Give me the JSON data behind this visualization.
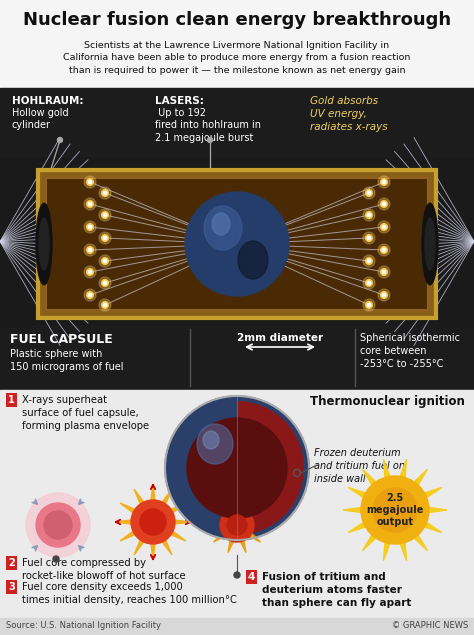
{
  "title": "Nuclear fusion clean energy breakthrough",
  "subtitle": "Scientists at the Lawrence Livermore National Ignition Facility in\nCalifornia have been able to produce more energy from a fusion reaction\nthan is required to power it — the milestone known as net energy gain",
  "bg_color": "#f0f0f0",
  "label_hohlraum_bold": "HOHLRAUM:",
  "label_hohlraum_rest": "\nHollow gold\ncylinder",
  "label_lasers_bold": "LASERS:",
  "label_lasers_rest": " Up to 192\nfired into hohlraum in\n2.1 megajoule burst",
  "label_gold": "Gold absorbs\nUV energy,\nradiates x-rays",
  "label_fuel_capsule_title": "FUEL CAPSULE",
  "label_fuel_capsule_desc": "Plastic sphere with\n150 micrograms of fuel",
  "label_2mm": "2mm diameter",
  "label_spherical": "Spherical isothermic\ncore between\n-253°C to -255°C",
  "label_frozen": "Frozen deuterium\nand tritium fuel on\ninside wall",
  "label_thermonuclear": "Thermonuclear ignition",
  "label_2_5": "2.5\nmegajoule\noutput",
  "step1": "X-rays superheat\nsurface of fuel capsule,\nforming plasma envelope",
  "step2": "Fuel core compressed by\nrocket-like blowoff of hot surface",
  "step3": "Fuel core density exceeds 1,000\ntimes initial density, reaches 100 million°C",
  "step4": "Fusion of tritium and\ndeuterium atoms faster\nthan sphere can fly apart",
  "source": "Source: U.S. National Ignition Facility",
  "credit": "© GRAPHIC NEWS"
}
